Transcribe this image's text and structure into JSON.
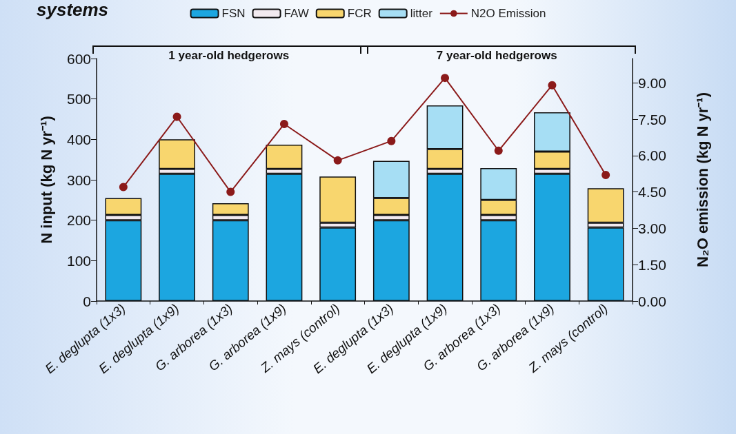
{
  "chart_data": {
    "type": "bar",
    "title": "systems",
    "ylabel": "N input (kg N yr⁻¹)",
    "y2label": "N₂O emission (kg N yr⁻¹)",
    "categories": [
      "E. deglupta (1x3)",
      "E. deglupta (1x9)",
      "G. arborea (1x3)",
      "G. arborea (1x9)",
      "Z. mays (control)",
      "E. deglupta (1x3)",
      "E. deglupta (1x9)",
      "G. arborea (1x3)",
      "G. arborea (1x9)",
      "Z. mays (control)"
    ],
    "stacked": true,
    "series": [
      {
        "name": "FSN",
        "color": "#1ca6e0",
        "values": [
          200,
          315,
          200,
          315,
          182,
          200,
          315,
          200,
          315,
          182
        ]
      },
      {
        "name": "FAW",
        "color": "#f2eaf0",
        "values": [
          13,
          12,
          13,
          12,
          12,
          13,
          12,
          13,
          12,
          12
        ]
      },
      {
        "name": "FCR",
        "color": "#f8d66e",
        "values": [
          42,
          73,
          29,
          60,
          114,
          42,
          49,
          37,
          43,
          85
        ]
      },
      {
        "name": "litter",
        "color": "#a6def4",
        "values": [
          null,
          null,
          null,
          null,
          null,
          92,
          108,
          79,
          97,
          null
        ]
      },
      {
        "name": "N2O Emission",
        "type": "line",
        "axis": "y2",
        "color": "#8b1a1a",
        "values": [
          4.7,
          7.6,
          4.5,
          7.3,
          5.8,
          6.6,
          9.2,
          6.2,
          8.9,
          5.2
        ]
      }
    ],
    "ylim": [
      0,
      600
    ],
    "yticks": [
      0,
      100,
      200,
      300,
      400,
      500,
      600
    ],
    "y2lim": [
      0,
      10
    ],
    "y2ticks": [
      {
        "value": 0,
        "label": "0.00"
      },
      {
        "value": 1.5,
        "label": "1.50"
      },
      {
        "value": 3,
        "label": "3.00"
      },
      {
        "value": 4.5,
        "label": "4.50"
      },
      {
        "value": 6,
        "label": "6.00"
      },
      {
        "value": 7.5,
        "label": "7.50"
      },
      {
        "value": 9,
        "label": "9.00"
      }
    ],
    "annotations": [
      "1 year-old hedgerows",
      "7 year-old hedgerows"
    ],
    "marker": "circle",
    "legend": "top",
    "grid": false
  }
}
